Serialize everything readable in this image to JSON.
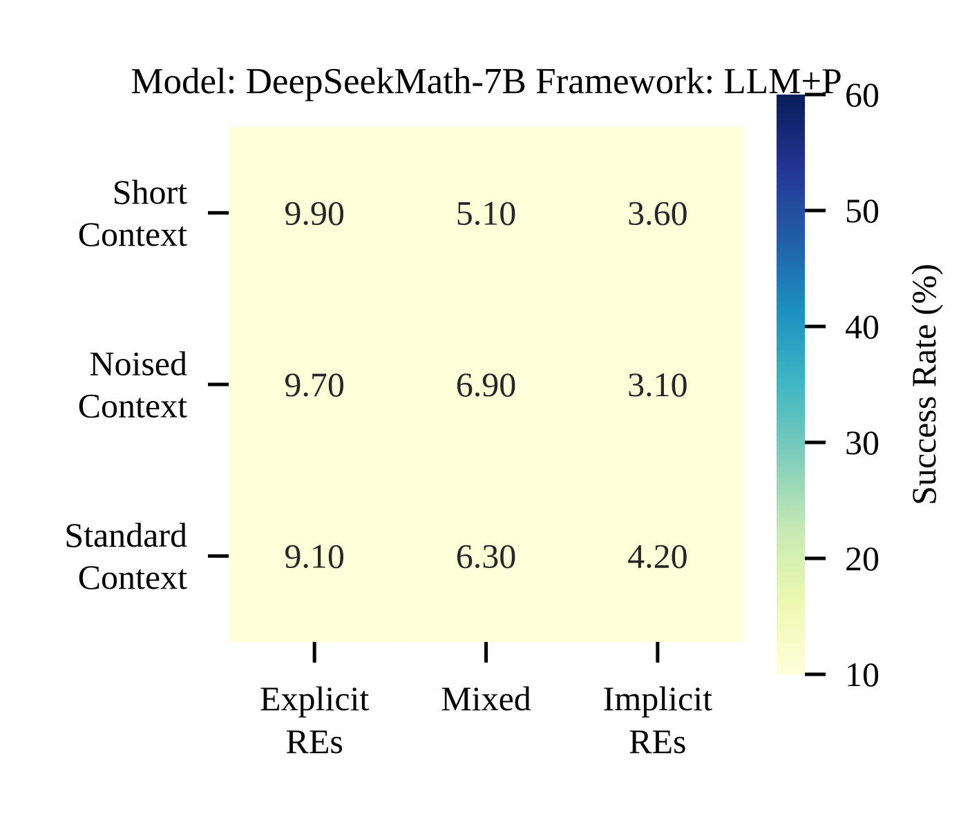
{
  "chart_data": {
    "type": "heatmap",
    "title": "Model: DeepSeekMath-7B  Framework: LLM+P",
    "rows": [
      [
        "Short",
        "Context"
      ],
      [
        "Noised",
        "Context"
      ],
      [
        "Standard",
        "Context"
      ]
    ],
    "columns": [
      [
        "Explicit",
        "REs"
      ],
      [
        "Mixed"
      ],
      [
        "Implicit",
        "REs"
      ]
    ],
    "values": [
      [
        9.9,
        5.1,
        3.6
      ],
      [
        9.7,
        6.9,
        3.1
      ],
      [
        9.1,
        6.3,
        4.2
      ]
    ],
    "value_labels": [
      [
        "9.90",
        "5.10",
        "3.60"
      ],
      [
        "9.70",
        "6.90",
        "3.10"
      ],
      [
        "9.10",
        "6.30",
        "4.20"
      ]
    ],
    "colorbar": {
      "label": "Success Rate (%)",
      "range": [
        10,
        60
      ],
      "ticks": [
        10,
        20,
        30,
        40,
        50,
        60
      ],
      "tick_labels": [
        "10",
        "20",
        "30",
        "40",
        "50",
        "60"
      ],
      "colormap": "YlGnBu",
      "colors": [
        "#ffffd9",
        "#edf8b1",
        "#c7e9b4",
        "#7fcdbb",
        "#41b6c4",
        "#1d91c0",
        "#225ea8",
        "#253494",
        "#081d58"
      ]
    },
    "cell_color": "#ffffd9",
    "annotation_color": "#262626",
    "grid": false
  }
}
